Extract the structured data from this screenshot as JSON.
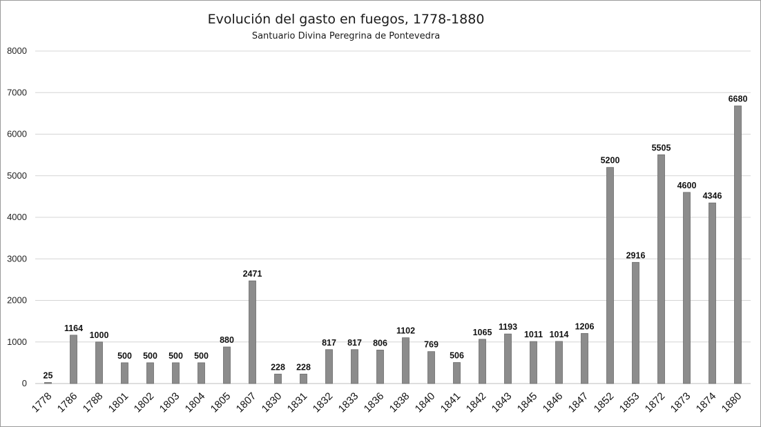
{
  "chart_data": {
    "type": "bar",
    "title": "Evolución del gasto en fuegos, 1778-1880",
    "subtitle": "Santuario Divina Peregrina de Pontevedra",
    "xlabel": "",
    "ylabel": "",
    "ylim": [
      0,
      8000
    ],
    "yticks": [
      0,
      1000,
      2000,
      3000,
      4000,
      5000,
      6000,
      7000,
      8000
    ],
    "grid": true,
    "categories": [
      "1778",
      "1786",
      "1788",
      "1801",
      "1802",
      "1803",
      "1804",
      "1805",
      "1807",
      "1830",
      "1831",
      "1832",
      "1833",
      "1836",
      "1838",
      "1840",
      "1841",
      "1842",
      "1843",
      "1845",
      "1846",
      "1847",
      "1852",
      "1853",
      "1872",
      "1873",
      "1874",
      "1880"
    ],
    "values": [
      25,
      1164,
      1000,
      500,
      500,
      500,
      500,
      880,
      2471,
      228,
      228,
      817,
      817,
      806,
      1102,
      769,
      506,
      1065,
      1193,
      1011,
      1014,
      1206,
      5200,
      2916,
      5505,
      4600,
      4346,
      6680
    ],
    "colors": {
      "bar": "#8c8c8c",
      "bar_edge": "#6a6a6a",
      "grid": "#d4d4d4"
    }
  }
}
